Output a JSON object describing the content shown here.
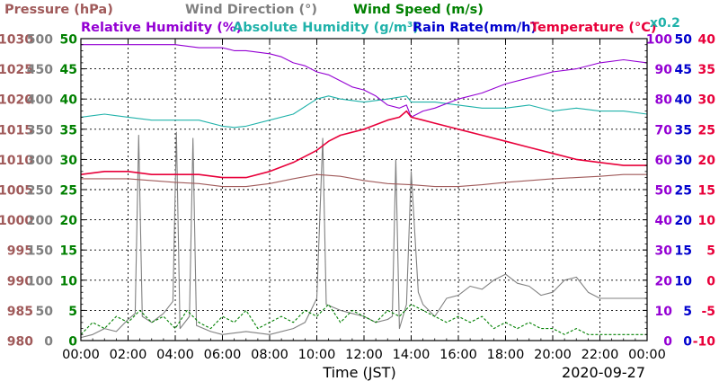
{
  "chart_data": {
    "type": "line",
    "date": "2020-09-27",
    "xlabel": "Time (JST)",
    "scale_note": "x0.2",
    "x_tick_labels": [
      "00:00",
      "02:00",
      "04:00",
      "06:00",
      "08:00",
      "10:00",
      "12:00",
      "14:00",
      "16:00",
      "18:00",
      "20:00",
      "22:00",
      "00:00"
    ],
    "x_range_hours": [
      0,
      24
    ],
    "grid": true,
    "legend": [
      {
        "label": "Pressure (hPa)",
        "color": "#A05A5A"
      },
      {
        "label": "Wind Direction (°)",
        "color": "#808080"
      },
      {
        "label": "Wind Speed (m/s)",
        "color": "#008000"
      },
      {
        "label": "Relative Humidity (%)",
        "color": "#9400D3"
      },
      {
        "label": "Absolute Humidity (g/m³)",
        "color": "#20B2AA"
      },
      {
        "label": "Rain Rate(mm/h)",
        "color": "#0000CD"
      },
      {
        "label": "Temperature (°C)",
        "color": "#E8003A"
      }
    ],
    "axes": {
      "pressure": {
        "min": 980,
        "max": 1030,
        "ticks": [
          "1030",
          "1025",
          "1020",
          "1015",
          "1010",
          "1005",
          "1000",
          "995",
          "990",
          "985",
          "980"
        ],
        "color": "#A05A5A"
      },
      "wind_direction": {
        "min": 0,
        "max": 500,
        "ticks": [
          "500",
          "450",
          "400",
          "350",
          "300",
          "250",
          "200",
          "150",
          "100",
          "50",
          "0"
        ],
        "color": "#808080"
      },
      "wind_speed": {
        "min": 0,
        "max": 50,
        "ticks": [
          "50",
          "45",
          "40",
          "35",
          "30",
          "25",
          "20",
          "15",
          "10",
          "5",
          "0"
        ],
        "color": "#008000"
      },
      "humidity": {
        "min": 0,
        "max": 100,
        "ticks": [
          "100",
          "90",
          "80",
          "70",
          "60",
          "50",
          "40",
          "30",
          "20",
          "10",
          "0"
        ],
        "color": "#9400D3"
      },
      "rain_rate": {
        "min": 0,
        "max": 50,
        "ticks": [
          "50",
          "45",
          "40",
          "35",
          "30",
          "25",
          "20",
          "15",
          "10",
          "5",
          "0"
        ],
        "color": "#0000CD"
      },
      "temperature": {
        "min": -10,
        "max": 40,
        "ticks": [
          "40",
          "35",
          "30",
          "25",
          "20",
          "15",
          "10",
          "5",
          "0",
          "-5",
          "-10"
        ],
        "color": "#E8003A"
      }
    },
    "series": [
      {
        "name": "Relative Humidity (%)",
        "axis": "humidity",
        "color": "#9400D3",
        "x": [
          0,
          1,
          2,
          3,
          4,
          5,
          6,
          6.5,
          7,
          8,
          8.5,
          9,
          9.5,
          10,
          10.5,
          11,
          11.5,
          12,
          12.5,
          13,
          13.5,
          13.8,
          14,
          14.5,
          15,
          16,
          17,
          18,
          19,
          20,
          21,
          22,
          23,
          24
        ],
        "y": [
          98,
          98,
          98,
          98,
          98,
          97,
          97,
          96,
          96,
          95,
          94,
          92,
          91,
          89,
          88,
          86,
          84,
          83,
          81,
          78,
          77,
          78,
          74,
          76,
          77,
          80,
          82,
          85,
          87,
          89,
          90,
          92,
          93,
          92
        ]
      },
      {
        "name": "Absolute Humidity (g/m³)",
        "axis": "wind_speed",
        "color": "#20B2AA",
        "x": [
          0,
          1,
          2,
          3,
          4,
          5,
          6,
          6.5,
          7,
          8,
          9,
          10,
          10.5,
          11,
          12,
          13,
          13.8,
          14,
          15,
          16,
          17,
          18,
          19,
          20,
          21,
          22,
          23,
          24
        ],
        "y": [
          37,
          37.5,
          37,
          36.5,
          36.5,
          36.5,
          35.5,
          35.3,
          35.5,
          36.5,
          37.5,
          40,
          40.5,
          40,
          39.5,
          40,
          40.5,
          39.5,
          39.5,
          39,
          38.5,
          38.5,
          39,
          38,
          38.5,
          38,
          38,
          37.5
        ]
      },
      {
        "name": "Temperature (°C)",
        "axis": "temperature",
        "color": "#E8003A",
        "x": [
          0,
          1,
          2,
          3,
          4,
          5,
          6,
          7,
          8,
          9,
          10,
          10.5,
          11,
          12,
          13,
          13.5,
          13.8,
          14,
          14.5,
          15,
          16,
          17,
          18,
          19,
          20,
          21,
          22,
          23,
          24
        ],
        "y": [
          17.5,
          18,
          18,
          17.5,
          17.5,
          17.5,
          17,
          17,
          18,
          19.5,
          21.5,
          23,
          24,
          25,
          26.5,
          27,
          28,
          27,
          26.5,
          26,
          25,
          24,
          23,
          22,
          21,
          20,
          19.5,
          19,
          19
        ]
      },
      {
        "name": "Pressure (hPa)",
        "axis": "pressure",
        "color": "#A05A5A",
        "x": [
          0,
          1,
          2,
          3,
          4,
          5,
          6,
          7,
          8,
          9,
          10,
          11,
          12,
          13,
          14,
          15,
          16,
          17,
          18,
          19,
          20,
          21,
          22,
          23,
          24
        ],
        "y": [
          1006.8,
          1006.8,
          1006.8,
          1006.5,
          1006.2,
          1006,
          1005.5,
          1005.5,
          1006,
          1006.8,
          1007.5,
          1007.2,
          1006.5,
          1006,
          1005.8,
          1005.5,
          1005.5,
          1005.8,
          1006.2,
          1006.5,
          1006.8,
          1007,
          1007.2,
          1007.5,
          1007.5
        ]
      },
      {
        "name": "Wind Direction (°)",
        "axis": "wind_direction",
        "color": "#808080",
        "x": [
          0,
          0.5,
          1,
          1.5,
          2,
          2.3,
          2.45,
          2.6,
          3,
          3.5,
          3.9,
          4.05,
          4.2,
          4.6,
          4.75,
          4.9,
          5.5,
          6,
          7,
          8,
          9,
          9.5,
          10,
          10.25,
          10.4,
          11,
          11.5,
          12,
          12.5,
          13,
          13.2,
          13.35,
          13.5,
          13.8,
          14,
          14.3,
          14.5,
          15,
          15.5,
          16,
          16.5,
          17,
          17.5,
          18,
          18.5,
          19,
          19.5,
          20,
          20.5,
          21,
          21.5,
          22,
          22.5,
          23,
          23.5,
          24
        ],
        "y": [
          5,
          10,
          20,
          15,
          35,
          45,
          340,
          40,
          30,
          45,
          65,
          345,
          20,
          40,
          335,
          25,
          15,
          10,
          15,
          10,
          20,
          30,
          70,
          335,
          60,
          50,
          45,
          40,
          30,
          35,
          40,
          300,
          20,
          60,
          280,
          80,
          60,
          40,
          70,
          75,
          90,
          85,
          100,
          110,
          95,
          90,
          75,
          80,
          100,
          105,
          80,
          70,
          70,
          70,
          70,
          70
        ]
      },
      {
        "name": "Wind Speed (m/s)",
        "axis": "wind_speed",
        "color": "#008000",
        "x": [
          0,
          0.5,
          1,
          1.5,
          2,
          2.5,
          3,
          3.5,
          4,
          4.5,
          5,
          5.5,
          6,
          6.5,
          7,
          7.5,
          8,
          8.5,
          9,
          9.5,
          10,
          10.5,
          11,
          11.5,
          12,
          12.5,
          13,
          13.5,
          14,
          14.5,
          15,
          15.5,
          16,
          16.5,
          17,
          17.5,
          18,
          18.5,
          19,
          19.5,
          20,
          20.5,
          21,
          21.5,
          22,
          22.5,
          23,
          23.5,
          24
        ],
        "y": [
          1,
          3,
          2,
          4,
          3,
          5,
          3,
          4,
          2,
          5,
          3,
          2,
          4,
          3,
          5,
          2,
          3,
          4,
          3,
          5,
          4,
          6,
          3,
          5,
          4,
          3,
          5,
          4,
          6,
          5,
          4,
          3,
          4,
          3,
          4,
          2,
          3,
          2,
          3,
          2,
          2,
          1,
          2,
          1,
          1,
          1,
          1,
          1,
          1
        ]
      },
      {
        "name": "Rain Rate(mm/h)",
        "axis": "rain_rate",
        "color": "#0000CD",
        "x": [
          0,
          24
        ],
        "y": [
          0,
          0
        ]
      }
    ]
  }
}
